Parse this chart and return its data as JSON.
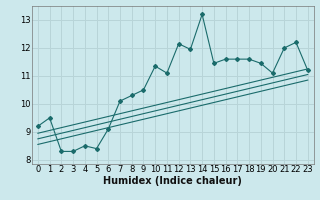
{
  "xlabel": "Humidex (Indice chaleur)",
  "bg_color": "#cce8ec",
  "grid_color": "#b8d4d8",
  "line_color": "#1a6b6b",
  "x_main": [
    0,
    1,
    2,
    3,
    4,
    5,
    6,
    7,
    8,
    9,
    10,
    11,
    12,
    13,
    14,
    15,
    16,
    17,
    18,
    19,
    20,
    21,
    22,
    23
  ],
  "y_main": [
    9.2,
    9.5,
    8.3,
    8.3,
    8.5,
    8.4,
    9.1,
    10.1,
    10.3,
    10.5,
    11.35,
    11.1,
    12.15,
    11.95,
    13.2,
    11.45,
    11.6,
    11.6,
    11.6,
    11.45,
    11.1,
    12.0,
    12.2,
    11.2
  ],
  "ylim": [
    7.85,
    13.5
  ],
  "xlim": [
    -0.5,
    23.5
  ],
  "yticks": [
    8,
    9,
    10,
    11,
    12,
    13
  ],
  "xticks": [
    0,
    1,
    2,
    3,
    4,
    5,
    6,
    7,
    8,
    9,
    10,
    11,
    12,
    13,
    14,
    15,
    16,
    17,
    18,
    19,
    20,
    21,
    22,
    23
  ],
  "reg_lines": [
    [
      [
        0,
        23
      ],
      [
        8.55,
        10.85
      ]
    ],
    [
      [
        0,
        23
      ],
      [
        8.75,
        11.05
      ]
    ],
    [
      [
        0,
        23
      ],
      [
        8.95,
        11.25
      ]
    ]
  ],
  "tick_fontsize": 6,
  "xlabel_fontsize": 7
}
